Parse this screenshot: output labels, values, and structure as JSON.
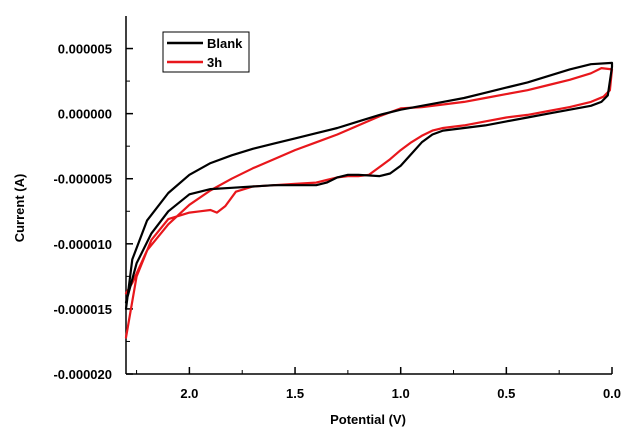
{
  "chart_data": {
    "type": "line",
    "xlabel": "Potential (V)",
    "ylabel": "Current (A)",
    "xlim": [
      2.3,
      0.0
    ],
    "ylim": [
      -2e-05,
      7.5e-06
    ],
    "x_reversed": true,
    "grid": false,
    "legend_position": "top-left",
    "x_ticks": [
      {
        "value": 2.0,
        "label": "2.0"
      },
      {
        "value": 1.5,
        "label": "1.5"
      },
      {
        "value": 1.0,
        "label": "1.0"
      },
      {
        "value": 0.5,
        "label": "0.5"
      },
      {
        "value": 0.0,
        "label": "0.0"
      }
    ],
    "y_ticks": [
      {
        "value": 5e-06,
        "label": "0.000005"
      },
      {
        "value": 0.0,
        "label": "0.000000"
      },
      {
        "value": -5e-06,
        "label": "-0.000005"
      },
      {
        "value": -1e-05,
        "label": "-0.000010"
      },
      {
        "value": -1.5e-05,
        "label": "-0.000015"
      },
      {
        "value": -2e-05,
        "label": "-0.000020"
      }
    ],
    "series": [
      {
        "name": "Blank",
        "color": "#000000",
        "points": [
          [
            2.3,
            -1.45e-05
          ],
          [
            2.25,
            -1.15e-05
          ],
          [
            2.18,
            -9.2e-06
          ],
          [
            2.1,
            -7.5e-06
          ],
          [
            2.0,
            -6.2e-06
          ],
          [
            1.9,
            -5.8e-06
          ],
          [
            1.8,
            -5.7e-06
          ],
          [
            1.7,
            -5.6e-06
          ],
          [
            1.6,
            -5.5e-06
          ],
          [
            1.5,
            -5.5e-06
          ],
          [
            1.4,
            -5.5e-06
          ],
          [
            1.35,
            -5.3e-06
          ],
          [
            1.3,
            -4.9e-06
          ],
          [
            1.25,
            -4.7e-06
          ],
          [
            1.2,
            -4.7e-06
          ],
          [
            1.1,
            -4.8e-06
          ],
          [
            1.05,
            -4.6e-06
          ],
          [
            1.0,
            -4e-06
          ],
          [
            0.95,
            -3.1e-06
          ],
          [
            0.9,
            -2.2e-06
          ],
          [
            0.85,
            -1.6e-06
          ],
          [
            0.8,
            -1.3e-06
          ],
          [
            0.7,
            -1.1e-06
          ],
          [
            0.6,
            -9e-07
          ],
          [
            0.5,
            -6e-07
          ],
          [
            0.4,
            -3e-07
          ],
          [
            0.3,
            0.0
          ],
          [
            0.2,
            3e-07
          ],
          [
            0.1,
            6e-07
          ],
          [
            0.05,
            9e-07
          ],
          [
            0.02,
            1.4e-06
          ],
          [
            0.0,
            3.6e-06
          ],
          [
            0.0,
            3.9e-06
          ],
          [
            0.1,
            3.8e-06
          ],
          [
            0.2,
            3.4e-06
          ],
          [
            0.3,
            2.9e-06
          ],
          [
            0.4,
            2.4e-06
          ],
          [
            0.5,
            2e-06
          ],
          [
            0.6,
            1.6e-06
          ],
          [
            0.7,
            1.2e-06
          ],
          [
            0.8,
            9e-07
          ],
          [
            0.9,
            6e-07
          ],
          [
            1.0,
            3e-07
          ],
          [
            1.1,
            -1e-07
          ],
          [
            1.2,
            -6e-07
          ],
          [
            1.3,
            -1.1e-06
          ],
          [
            1.4,
            -1.5e-06
          ],
          [
            1.5,
            -1.9e-06
          ],
          [
            1.6,
            -2.3e-06
          ],
          [
            1.7,
            -2.7e-06
          ],
          [
            1.8,
            -3.2e-06
          ],
          [
            1.9,
            -3.8e-06
          ],
          [
            2.0,
            -4.7e-06
          ],
          [
            2.1,
            -6.1e-06
          ],
          [
            2.2,
            -8.2e-06
          ],
          [
            2.27,
            -1.12e-05
          ],
          [
            2.3,
            -1.5e-05
          ]
        ]
      },
      {
        "name": "3h",
        "color": "#e8171c",
        "points": [
          [
            2.3,
            -1.72e-05
          ],
          [
            2.25,
            -1.25e-05
          ],
          [
            2.18,
            -9.7e-06
          ],
          [
            2.1,
            -8.1e-06
          ],
          [
            2.0,
            -7.6e-06
          ],
          [
            1.95,
            -7.5e-06
          ],
          [
            1.9,
            -7.4e-06
          ],
          [
            1.87,
            -7.6e-06
          ],
          [
            1.83,
            -7.1e-06
          ],
          [
            1.78,
            -6e-06
          ],
          [
            1.7,
            -5.6e-06
          ],
          [
            1.6,
            -5.5e-06
          ],
          [
            1.5,
            -5.4e-06
          ],
          [
            1.4,
            -5.3e-06
          ],
          [
            1.35,
            -5.1e-06
          ],
          [
            1.3,
            -4.9e-06
          ],
          [
            1.25,
            -4.8e-06
          ],
          [
            1.2,
            -4.8e-06
          ],
          [
            1.15,
            -4.7e-06
          ],
          [
            1.1,
            -4.1e-06
          ],
          [
            1.05,
            -3.5e-06
          ],
          [
            1.0,
            -2.8e-06
          ],
          [
            0.95,
            -2.2e-06
          ],
          [
            0.9,
            -1.7e-06
          ],
          [
            0.85,
            -1.3e-06
          ],
          [
            0.8,
            -1.1e-06
          ],
          [
            0.7,
            -9e-07
          ],
          [
            0.6,
            -6e-07
          ],
          [
            0.5,
            -3e-07
          ],
          [
            0.4,
            -1e-07
          ],
          [
            0.3,
            2e-07
          ],
          [
            0.2,
            5e-07
          ],
          [
            0.1,
            9e-07
          ],
          [
            0.04,
            1.3e-06
          ],
          [
            0.01,
            1.8e-06
          ],
          [
            0.0,
            3.4e-06
          ],
          [
            0.05,
            3.5e-06
          ],
          [
            0.1,
            3.1e-06
          ],
          [
            0.2,
            2.6e-06
          ],
          [
            0.3,
            2.2e-06
          ],
          [
            0.4,
            1.8e-06
          ],
          [
            0.5,
            1.5e-06
          ],
          [
            0.6,
            1.2e-06
          ],
          [
            0.7,
            9e-07
          ],
          [
            0.8,
            7e-07
          ],
          [
            0.9,
            5e-07
          ],
          [
            1.0,
            4e-07
          ],
          [
            1.1,
            -2e-07
          ],
          [
            1.2,
            -9e-07
          ],
          [
            1.3,
            -1.6e-06
          ],
          [
            1.4,
            -2.2e-06
          ],
          [
            1.5,
            -2.8e-06
          ],
          [
            1.6,
            -3.5e-06
          ],
          [
            1.7,
            -4.2e-06
          ],
          [
            1.8,
            -5e-06
          ],
          [
            1.9,
            -5.9e-06
          ],
          [
            2.0,
            -7e-06
          ],
          [
            2.1,
            -8.5e-06
          ],
          [
            2.2,
            -1.05e-05
          ],
          [
            2.27,
            -1.3e-05
          ],
          [
            2.3,
            -1.38e-05
          ]
        ]
      }
    ]
  }
}
